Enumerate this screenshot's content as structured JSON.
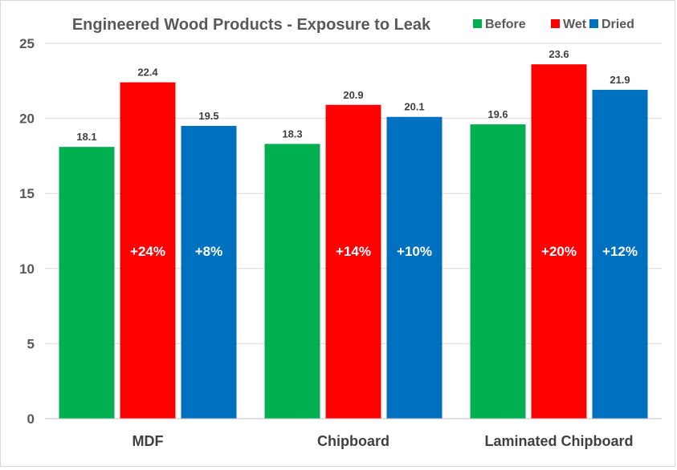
{
  "chart_data": {
    "type": "bar",
    "title": "Engineered Wood Products - Exposure to Leak",
    "categories": [
      "MDF",
      "Chipboard",
      "Laminated Chipboard"
    ],
    "series": [
      {
        "name": "Before",
        "color": "#00b050",
        "values": [
          18.1,
          18.3,
          19.6
        ],
        "labels": [
          "18.1",
          "18.3",
          "19.6"
        ],
        "pct_labels": [
          "",
          "",
          ""
        ]
      },
      {
        "name": "Wet",
        "color": "#ff0000",
        "values": [
          22.4,
          20.9,
          23.6
        ],
        "labels": [
          "22.4",
          "20.9",
          "23.6"
        ],
        "pct_labels": [
          "+24%",
          "+14%",
          "+20%"
        ]
      },
      {
        "name": "Dried",
        "color": "#0070c0",
        "values": [
          19.5,
          20.1,
          21.9
        ],
        "labels": [
          "19.5",
          "20.1",
          "21.9"
        ],
        "pct_labels": [
          "+8%",
          "+10%",
          "+12%"
        ]
      }
    ],
    "ylim": [
      0,
      25
    ],
    "yticks": [
      0,
      5,
      10,
      15,
      20,
      25
    ],
    "grid": true,
    "legend": "top-right",
    "xlabel": "",
    "ylabel": ""
  }
}
